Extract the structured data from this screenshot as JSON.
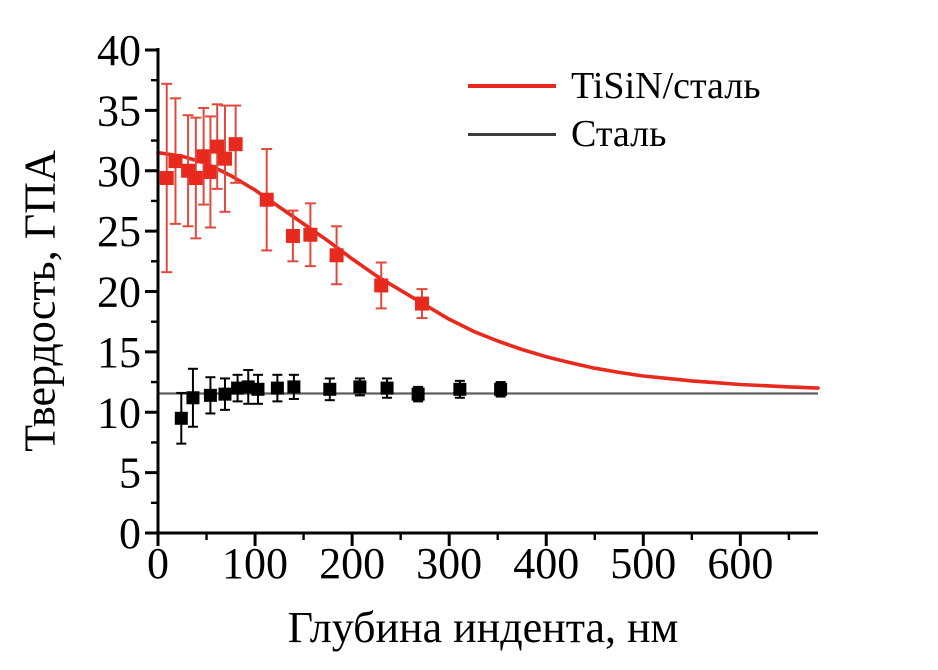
{
  "figure": {
    "background": "#ffffff"
  },
  "chart_data": {
    "type": "scatter",
    "title": "",
    "xlabel": "Глубина индента, нм",
    "ylabel": "Твердость, ГПА",
    "xlim": [
      0,
      680
    ],
    "ylim": [
      0,
      40
    ],
    "x_major_ticks": [
      0,
      100,
      200,
      300,
      400,
      500,
      600
    ],
    "x_minor_ticks": [
      50,
      150,
      250,
      350,
      450,
      550,
      650
    ],
    "y_major_ticks": [
      0,
      5,
      10,
      15,
      20,
      25,
      30,
      35,
      40
    ],
    "y_minor_ticks": [
      2.5,
      7.5,
      12.5,
      17.5,
      22.5,
      27.5,
      32.5,
      37.5
    ],
    "grid": false,
    "legend_position": "top-right-inside",
    "legend": [
      {
        "label": "TiSiN/сталь",
        "color": "#e8291e"
      },
      {
        "label": "Сталь",
        "color": "#3d3d3d"
      }
    ],
    "series": [
      {
        "name": "TiSiN/сталь (данные)",
        "type": "scatter",
        "marker": "square",
        "color": "#e8291e",
        "errorbar_color": "#e2493e",
        "points": [
          {
            "x": 9,
            "y": 29.4,
            "err": 7.8
          },
          {
            "x": 18,
            "y": 30.8,
            "err": 5.2
          },
          {
            "x": 31,
            "y": 30.0,
            "err": 4.6
          },
          {
            "x": 39,
            "y": 29.4,
            "err": 5.0
          },
          {
            "x": 47,
            "y": 31.2,
            "err": 4.0
          },
          {
            "x": 54,
            "y": 29.9,
            "err": 4.6
          },
          {
            "x": 61,
            "y": 32.0,
            "err": 3.5
          },
          {
            "x": 69,
            "y": 31.0,
            "err": 4.4
          },
          {
            "x": 80,
            "y": 32.2,
            "err": 3.2
          },
          {
            "x": 112,
            "y": 27.6,
            "err": 4.2
          },
          {
            "x": 139,
            "y": 24.6,
            "err": 2.1
          },
          {
            "x": 157,
            "y": 24.7,
            "err": 2.6
          },
          {
            "x": 184,
            "y": 23.0,
            "err": 2.4
          },
          {
            "x": 230,
            "y": 20.5,
            "err": 1.9
          },
          {
            "x": 272,
            "y": 19.0,
            "err": 1.2
          }
        ]
      },
      {
        "name": "TiSiN/сталь (аппроксимация)",
        "type": "line",
        "color": "#e8291e",
        "points": [
          [
            0,
            31.5
          ],
          [
            25,
            31.2
          ],
          [
            50,
            30.6
          ],
          [
            75,
            29.6
          ],
          [
            100,
            28.4
          ],
          [
            125,
            27.0
          ],
          [
            150,
            25.6
          ],
          [
            175,
            24.2
          ],
          [
            200,
            22.7
          ],
          [
            225,
            21.3
          ],
          [
            250,
            20.1
          ],
          [
            275,
            18.9
          ],
          [
            300,
            17.7
          ],
          [
            325,
            16.7
          ],
          [
            350,
            15.9
          ],
          [
            375,
            15.2
          ],
          [
            400,
            14.6
          ],
          [
            425,
            14.1
          ],
          [
            450,
            13.65
          ],
          [
            475,
            13.3
          ],
          [
            500,
            13.0
          ],
          [
            525,
            12.8
          ],
          [
            550,
            12.6
          ],
          [
            575,
            12.45
          ],
          [
            600,
            12.3
          ],
          [
            625,
            12.2
          ],
          [
            650,
            12.1
          ],
          [
            680,
            12.0
          ]
        ]
      },
      {
        "name": "Сталь (данные)",
        "type": "scatter",
        "marker": "square",
        "color": "#000000",
        "errorbar_color": "#000000",
        "points": [
          {
            "x": 24,
            "y": 9.5,
            "err": 2.1
          },
          {
            "x": 36,
            "y": 11.2,
            "err": 2.4
          },
          {
            "x": 54,
            "y": 11.4,
            "err": 1.5
          },
          {
            "x": 69,
            "y": 11.5,
            "err": 1.3
          },
          {
            "x": 82,
            "y": 12.0,
            "err": 1.1
          },
          {
            "x": 93,
            "y": 12.1,
            "err": 1.4
          },
          {
            "x": 103,
            "y": 11.9,
            "err": 1.2
          },
          {
            "x": 123,
            "y": 12.0,
            "err": 1.1
          },
          {
            "x": 140,
            "y": 12.1,
            "err": 1.0
          },
          {
            "x": 177,
            "y": 11.9,
            "err": 0.9
          },
          {
            "x": 208,
            "y": 12.1,
            "err": 0.7
          },
          {
            "x": 236,
            "y": 12.0,
            "err": 0.8
          },
          {
            "x": 268,
            "y": 11.5,
            "err": 0.6
          },
          {
            "x": 311,
            "y": 11.9,
            "err": 0.7
          },
          {
            "x": 353,
            "y": 11.9,
            "err": 0.6
          }
        ]
      },
      {
        "name": "Сталь (уровень)",
        "type": "line",
        "color": "#5f5f5f",
        "points": [
          [
            0,
            11.55
          ],
          [
            680,
            11.55
          ]
        ]
      }
    ]
  }
}
